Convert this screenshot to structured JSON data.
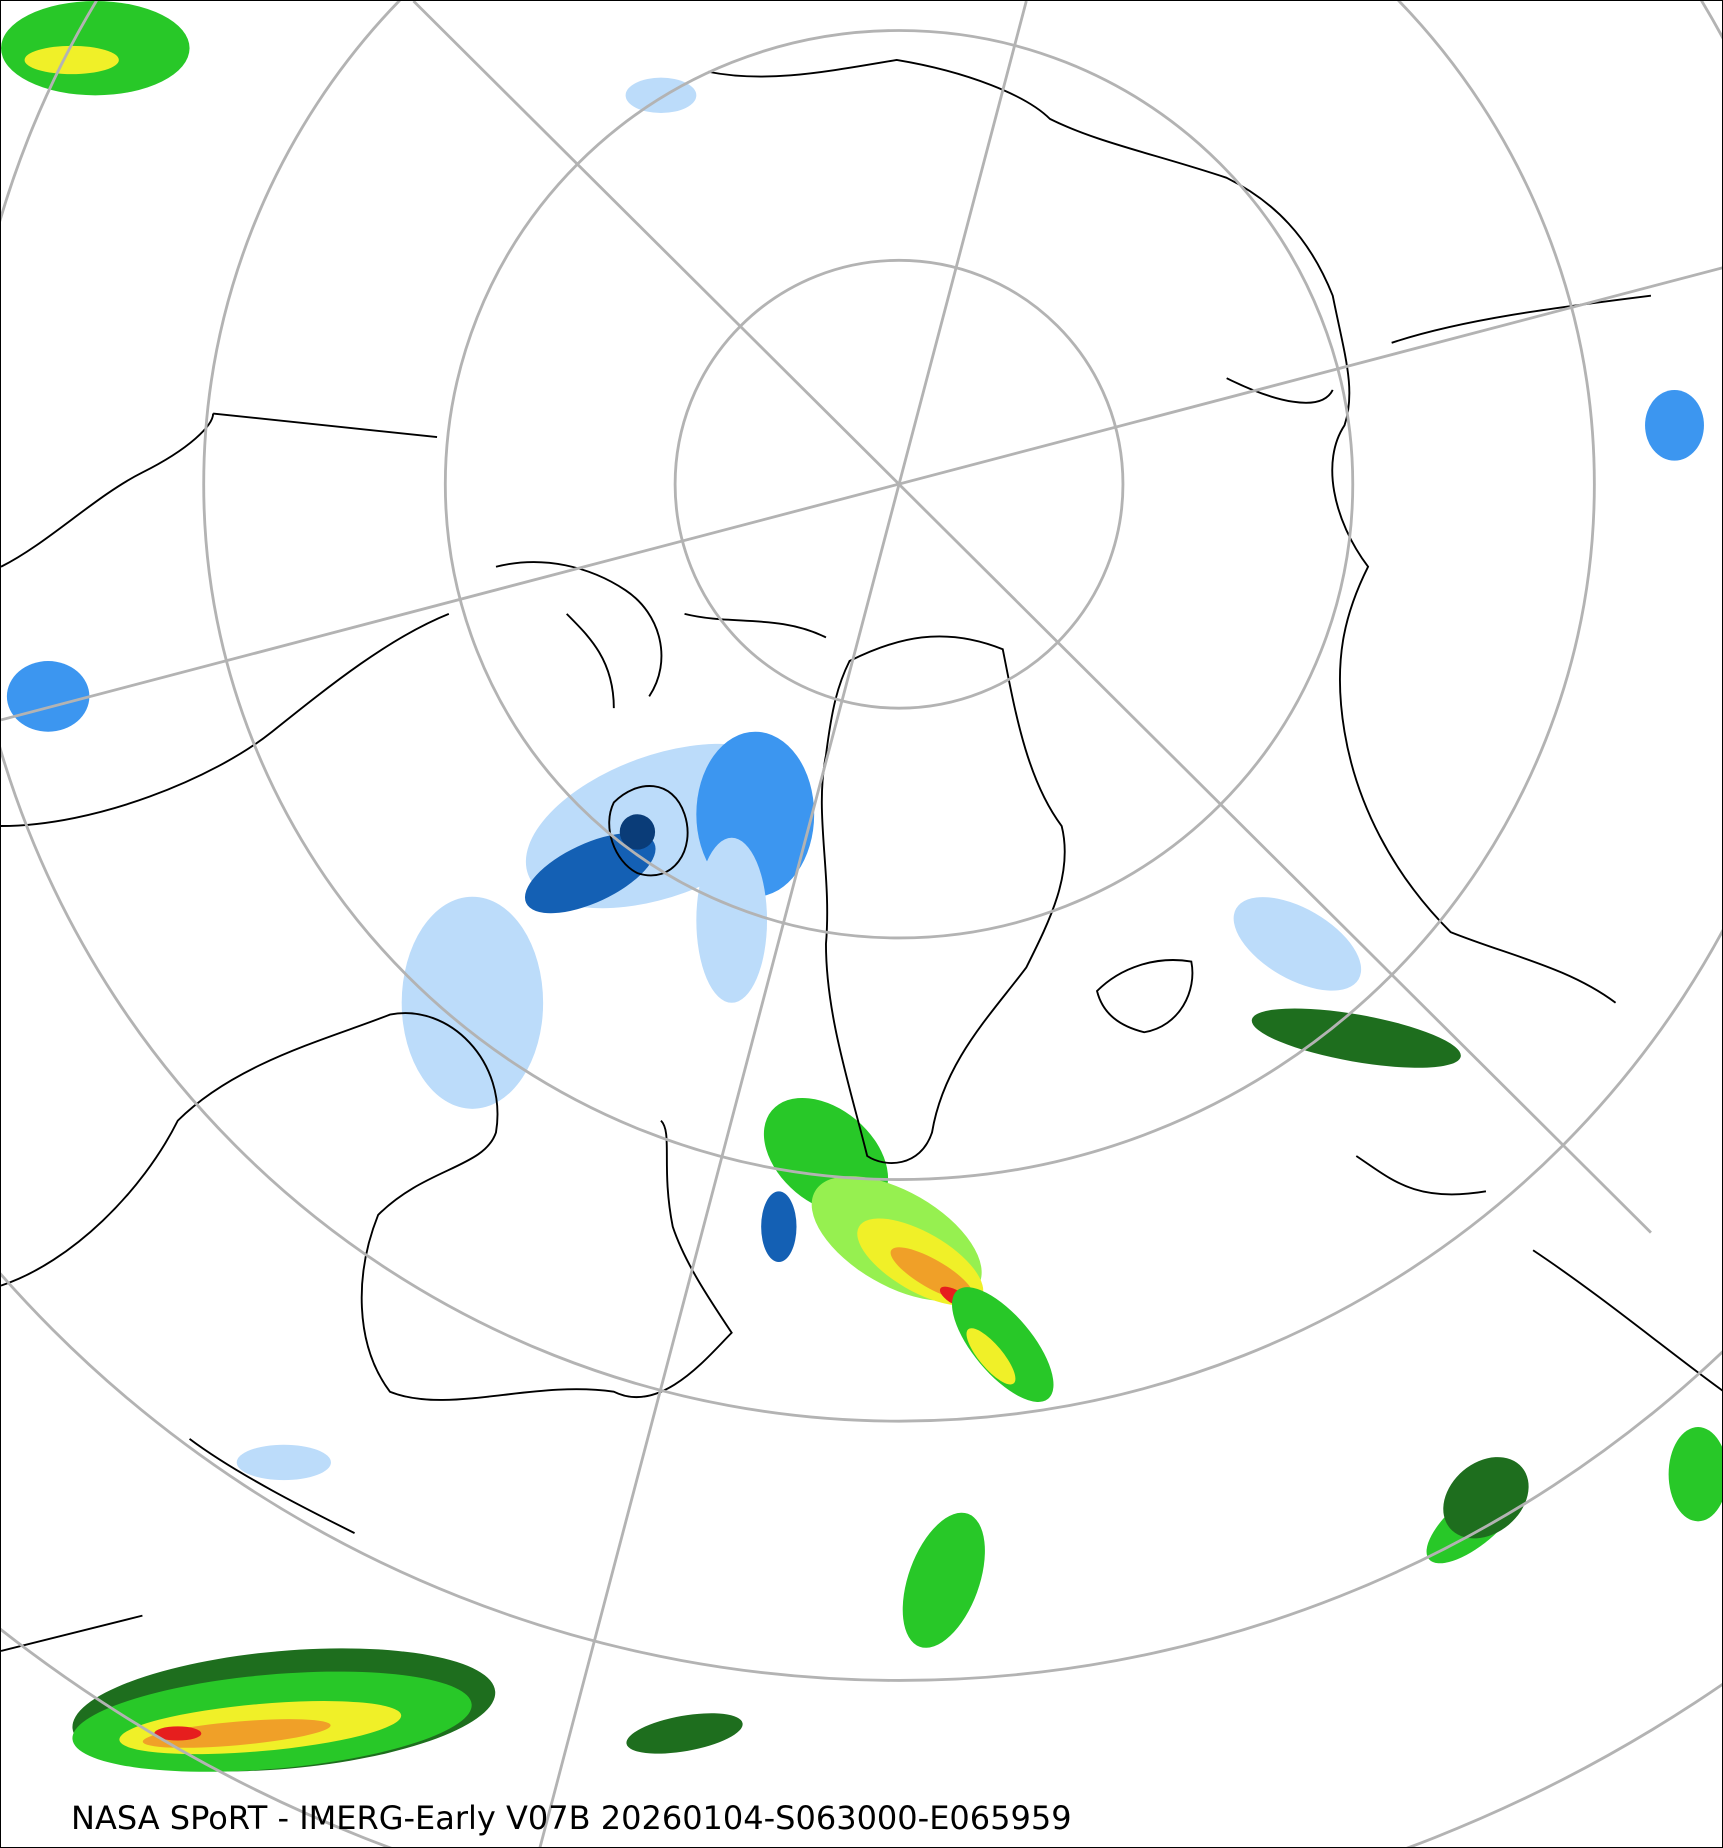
{
  "caption": "NASA SPoRT - IMERG-Early V07B 20260104-S063000-E065959",
  "projection": "north-polar-stereographic",
  "colors": {
    "graticule": "#b3b3b3",
    "coastline": "#000000",
    "light_blue": "#bcdcfa",
    "medium_blue": "#3c96f0",
    "dark_blue": "#1460b4",
    "navy": "#0a3c78",
    "dark_green": "#1e6e1e",
    "green": "#28c828",
    "light_green": "#96f050",
    "yellow": "#f0f028",
    "orange": "#f0a028",
    "red": "#e61e1e",
    "magenta": "#f050c8"
  }
}
